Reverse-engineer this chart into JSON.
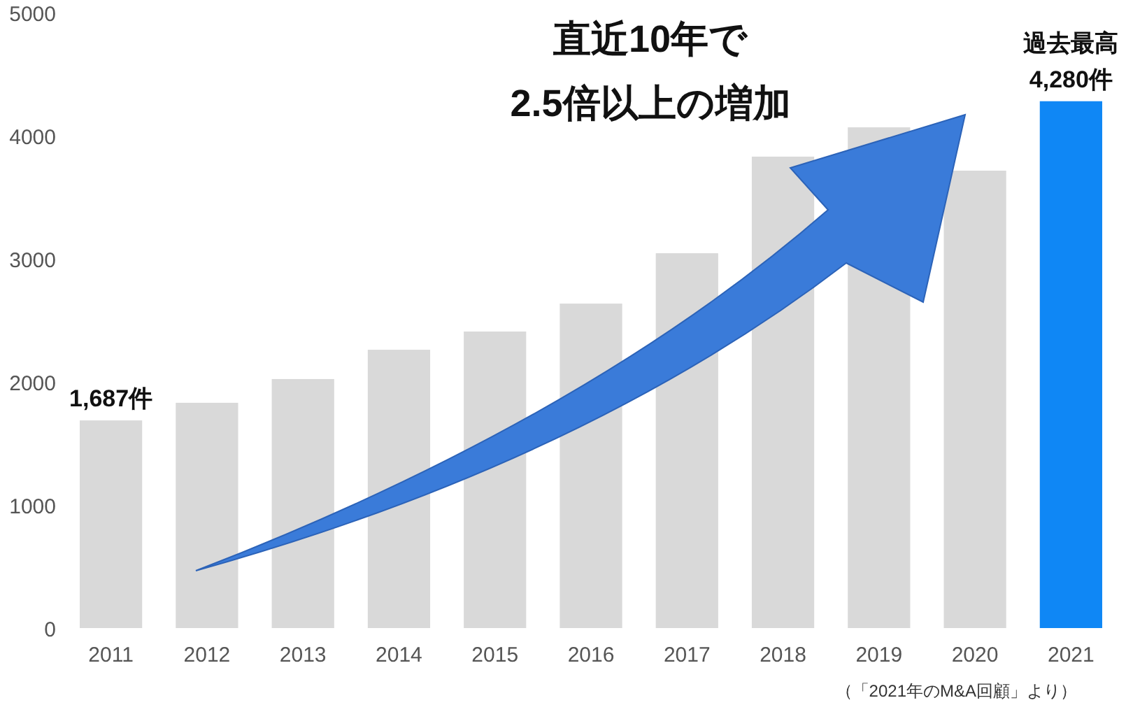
{
  "chart_data": {
    "type": "bar",
    "categories": [
      "2011",
      "2012",
      "2013",
      "2014",
      "2015",
      "2016",
      "2017",
      "2018",
      "2019",
      "2020",
      "2021"
    ],
    "values": [
      1687,
      1830,
      2023,
      2261,
      2409,
      2636,
      3045,
      3830,
      4068,
      3716,
      4280
    ],
    "colors": [
      "#d9d9d9",
      "#d9d9d9",
      "#d9d9d9",
      "#d9d9d9",
      "#d9d9d9",
      "#d9d9d9",
      "#d9d9d9",
      "#d9d9d9",
      "#d9d9d9",
      "#d9d9d9",
      "#0f87f5"
    ],
    "value_labels": [
      "1,687件",
      null,
      null,
      null,
      null,
      null,
      null,
      null,
      null,
      null,
      "4,280件"
    ],
    "ylim": [
      0,
      5000
    ],
    "yticks": [
      0,
      1000,
      2000,
      3000,
      4000,
      5000
    ],
    "grid": false,
    "annotations": [
      "直近10年で\n2.5倍以上の増加",
      {
        "text": "過去最高",
        "x": "2021",
        "y": 4280
      },
      "（「2021年のM&A回顧」より）"
    ]
  }
}
